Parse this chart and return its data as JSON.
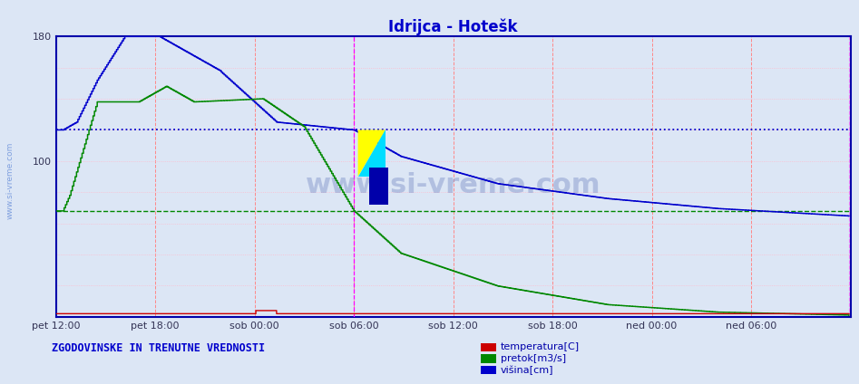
{
  "title": "Idrijca - Hotešk",
  "title_color": "#0000cc",
  "bg_color": "#dce6f5",
  "plot_bg_color": "#dce6f5",
  "ylim": [
    0,
    180
  ],
  "yticks": [
    0,
    20,
    40,
    60,
    80,
    100,
    120,
    140,
    160,
    180
  ],
  "ytick_labels": [
    "",
    "",
    "",
    "",
    "",
    "100",
    "",
    "",
    "",
    "180"
  ],
  "grid_color_v": "#ff8888",
  "grid_color_h": "#ffbbbb",
  "n_points": 576,
  "x_tick_labels": [
    "pet 12:00",
    "pet 18:00",
    "sob 00:00",
    "sob 06:00",
    "sob 12:00",
    "sob 18:00",
    "ned 00:00",
    "ned 06:00"
  ],
  "x_tick_positions": [
    0,
    72,
    144,
    216,
    288,
    360,
    432,
    504
  ],
  "temp_color": "#cc0000",
  "pretok_color": "#008800",
  "visina_color": "#0000cc",
  "legend_text_color": "#0000aa",
  "bottom_label": "ZGODOVINSKE IN TRENUTNE VREDNOSTI",
  "bottom_label_color": "#0000cc",
  "watermark": "www.si-vreme.com",
  "current_marker_x": 216,
  "hline_visina": 120,
  "hline_visina_style": "dotted",
  "hline_pretok": 68,
  "hline_pretok_style": "dashed"
}
